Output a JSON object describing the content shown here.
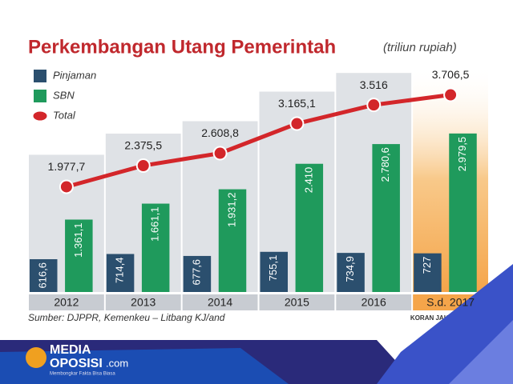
{
  "chart_data": {
    "type": "bar",
    "title": "Perkembangan Utang Pemerintah",
    "subtitle": "(triliun rupiah)",
    "categories": [
      "2012",
      "2013",
      "2014",
      "2015",
      "2016",
      "S.d. 2017"
    ],
    "series": [
      {
        "name": "Pinjaman",
        "type": "bar",
        "color": "#2b4f6e",
        "values": [
          616.6,
          714.4,
          677.6,
          755.1,
          734.9,
          727
        ],
        "value_labels": [
          "616,6",
          "714,4",
          "677,6",
          "755,1",
          "734,9",
          "727"
        ]
      },
      {
        "name": "SBN",
        "type": "bar",
        "color": "#1f9a5c",
        "values": [
          1361.1,
          1661.1,
          1931.2,
          2410,
          2780.6,
          2979.5
        ],
        "value_labels": [
          "1.361,1",
          "1.661,1",
          "1.931,2",
          "2.410",
          "2.780,6",
          "2.979,5"
        ]
      },
      {
        "name": "Total",
        "type": "line",
        "color": "#d3262a",
        "values": [
          1977.7,
          2375.5,
          2608.8,
          3165.1,
          3516,
          3706.5
        ],
        "value_labels": [
          "1.977,7",
          "2.375,5",
          "2.608,8",
          "3.165,1",
          "3.516",
          "3.706,5"
        ]
      }
    ],
    "ylim": [
      0,
      4000
    ],
    "source": "Sumber: DJPPR, Kemenkeu – Litbang KJ/and",
    "credit": "KORAN JAKARTA/ONES"
  },
  "logo": {
    "line1": "MEDIA",
    "line2": "OPOSISI",
    "domain": ".com",
    "tagline": "Membongkar Fakta Bisa Biasa"
  }
}
